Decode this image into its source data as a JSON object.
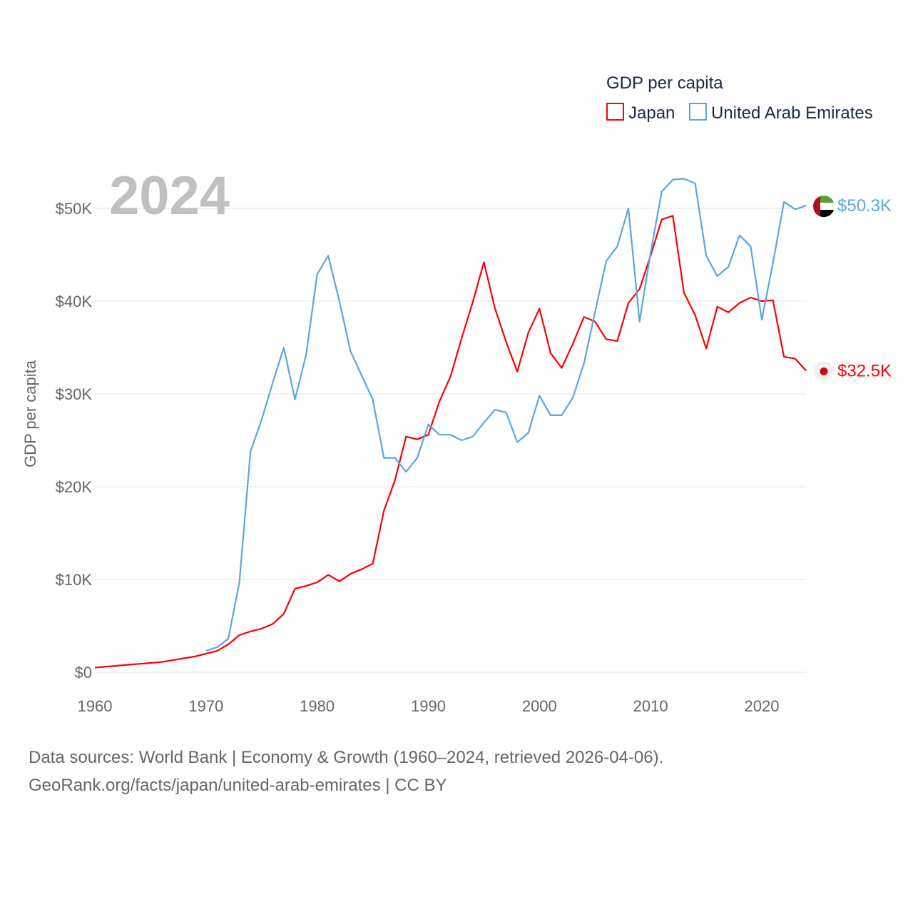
{
  "chart_data": {
    "type": "line",
    "title": "GDP per capita",
    "year_label": "2024",
    "ylabel": "GDP per capita",
    "xlabel": "",
    "xlim": [
      1960,
      2024
    ],
    "ylim": [
      0,
      55000
    ],
    "x_ticks": [
      1960,
      1970,
      1980,
      1990,
      2000,
      2010,
      2020
    ],
    "x_tick_labels": [
      "1960",
      "1970",
      "1980",
      "1990",
      "2000",
      "2010",
      "2020"
    ],
    "y_ticks": [
      0,
      10000,
      20000,
      30000,
      40000,
      50000
    ],
    "y_tick_labels": [
      "$0",
      "$10K",
      "$20K",
      "$30K",
      "$40K",
      "$50K"
    ],
    "grid": true,
    "legend": "top-right",
    "series": [
      {
        "name": "Japan",
        "color": "#ff0000",
        "end_label": "$32.5K",
        "flag": "japan-flag",
        "start_year": 1960,
        "values": [
          500,
          600,
          700,
          800,
          900,
          1000,
          1100,
          1300,
          1500,
          1700,
          2000,
          2300,
          3000,
          4000,
          4400,
          4700,
          5200,
          6300,
          9000,
          9300,
          9700,
          10500,
          9800,
          10600,
          11100,
          11700,
          17400,
          20700,
          25400,
          25100,
          25600,
          29200,
          31900,
          36000,
          39900,
          44200,
          39200,
          35600,
          32400,
          36600,
          39200,
          34400,
          32800,
          35400,
          38300,
          37800,
          35900,
          35700,
          39800,
          41300,
          44900,
          48800,
          49200,
          40900,
          38500,
          34900,
          39400,
          38800,
          39800,
          40400,
          40000,
          40100,
          34000,
          33800,
          32500
        ]
      },
      {
        "name": "United Arab Emirates",
        "color": "#5aa5e8",
        "end_label": "$50.3K",
        "flag": "uae-flag",
        "start_year": 1970,
        "values": [
          2300,
          2700,
          3600,
          9700,
          23800,
          27200,
          31200,
          35000,
          29400,
          34200,
          42900,
          44900,
          40000,
          34600,
          32000,
          29400,
          23100,
          23100,
          21600,
          23100,
          26700,
          25600,
          25600,
          25000,
          25400,
          26900,
          28300,
          28000,
          24800,
          25800,
          29800,
          27700,
          27700,
          29600,
          33300,
          38800,
          44300,
          45900,
          50000,
          37800,
          45200,
          51800,
          53100,
          53200,
          52700,
          44900,
          42700,
          43700,
          47100,
          45900,
          38000,
          44100,
          50700,
          49900,
          50300
        ]
      }
    ]
  },
  "footer": {
    "line1": "Data sources: World Bank | Economy & Growth (1960–2024, retrieved 2026-04-06).",
    "line2": "GeoRank.org/facts/japan/united-arab-emirates | CC BY"
  }
}
